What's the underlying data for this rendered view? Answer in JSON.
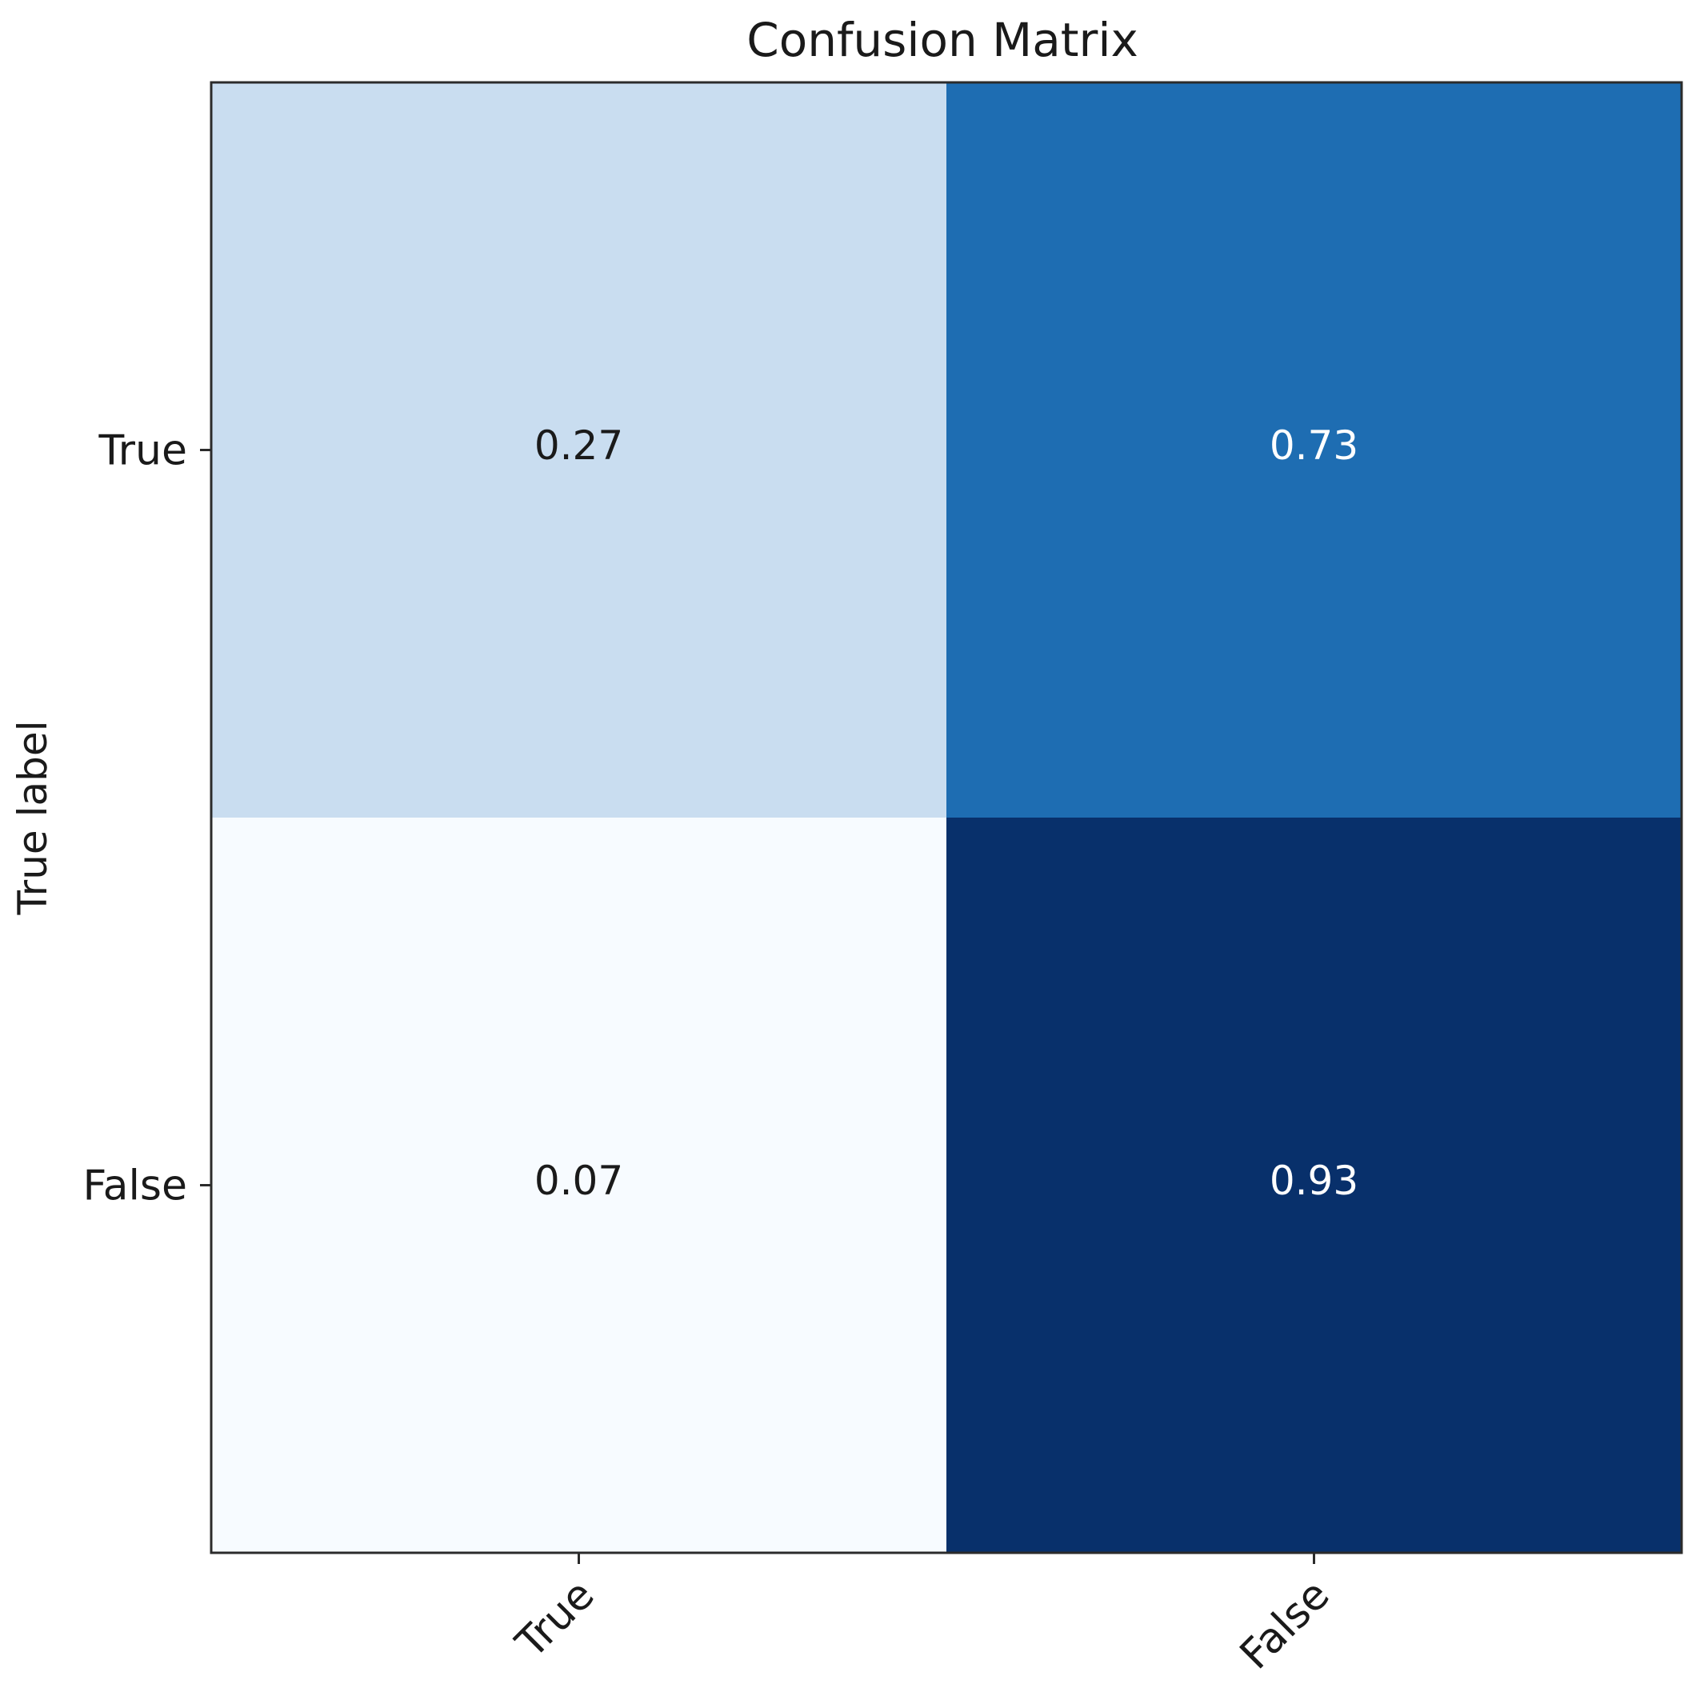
{
  "chart_data": {
    "type": "heatmap",
    "title": "Confusion Matrix",
    "ylabel": "True label",
    "xlabel": "",
    "row_labels": [
      "True",
      "False"
    ],
    "col_labels": [
      "True",
      "False"
    ],
    "values": [
      [
        0.27,
        0.73
      ],
      [
        0.07,
        0.93
      ]
    ],
    "value_labels": [
      [
        "0.27",
        "0.73"
      ],
      [
        "0.07",
        "0.93"
      ]
    ],
    "colormap": "Blues",
    "color_range": [
      0.07,
      0.93
    ],
    "colors": {
      "low": "#f7fbff",
      "mid": "#deebf7",
      "high": "#08306b",
      "text_dark": "#1a1a1a",
      "text_light": "#ffffff"
    },
    "grid": false,
    "legend": "none"
  }
}
